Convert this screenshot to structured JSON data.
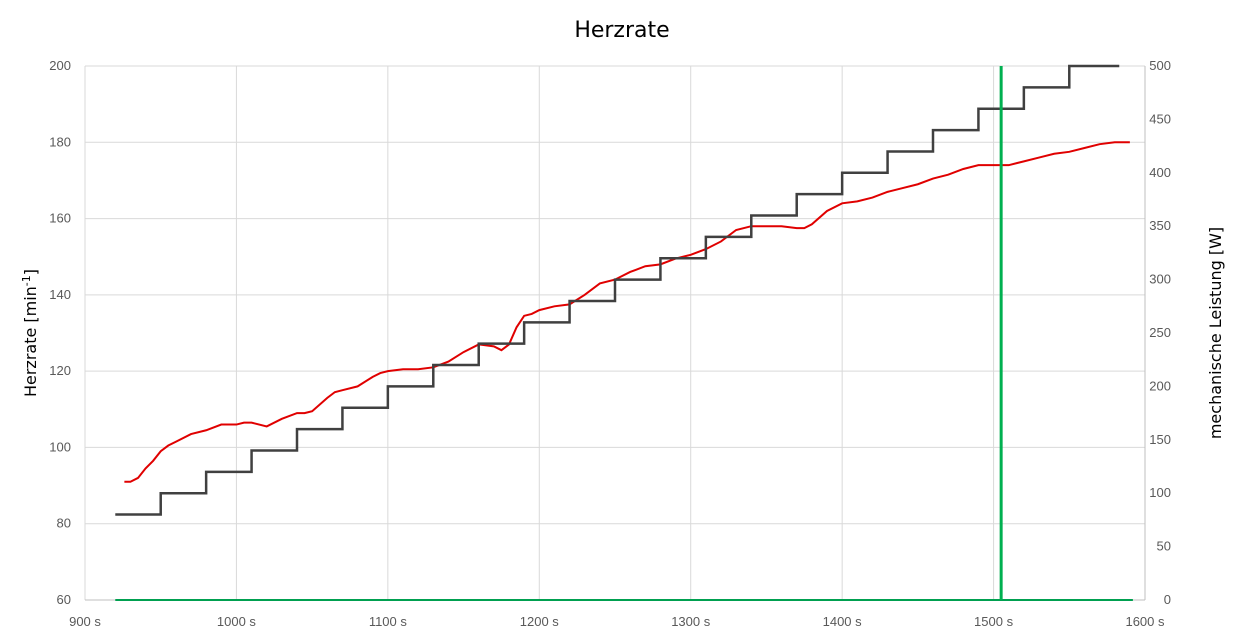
{
  "chart_data": {
    "type": "line",
    "title": "Herzrate",
    "ylabel": "Herzrate [min",
    "ylabel_sup": "-1",
    "ylabel_close": "]",
    "y2label": "mechanische Leistung [W]",
    "xlabel": "",
    "xlim": [
      900,
      1600
    ],
    "ylim": [
      60,
      200
    ],
    "y2lim": [
      0,
      500
    ],
    "grid": true,
    "legend": "none",
    "x_ticks": [
      "900 s",
      "1000 s",
      "1100 s",
      "1200 s",
      "1300 s",
      "1400 s",
      "1500 s",
      "1600 s"
    ],
    "y_ticks": [
      "60",
      "80",
      "100",
      "120",
      "140",
      "160",
      "180",
      "200"
    ],
    "y2_ticks": [
      "0",
      "50",
      "100",
      "150",
      "200",
      "250",
      "300",
      "350",
      "400",
      "450",
      "500"
    ],
    "series": [
      {
        "color": "#e00000",
        "axis": "left",
        "kind": "line",
        "x": [
          926,
          930,
          935,
          940,
          945,
          950,
          955,
          960,
          970,
          980,
          990,
          1000,
          1005,
          1010,
          1020,
          1030,
          1040,
          1045,
          1050,
          1060,
          1065,
          1070,
          1080,
          1090,
          1095,
          1100,
          1110,
          1120,
          1130,
          1140,
          1150,
          1160,
          1170,
          1175,
          1180,
          1185,
          1190,
          1195,
          1200,
          1210,
          1220,
          1230,
          1240,
          1250,
          1260,
          1270,
          1280,
          1290,
          1300,
          1310,
          1320,
          1330,
          1340,
          1350,
          1360,
          1370,
          1375,
          1380,
          1390,
          1400,
          1410,
          1420,
          1430,
          1440,
          1450,
          1460,
          1470,
          1480,
          1490,
          1500,
          1510,
          1520,
          1530,
          1540,
          1550,
          1560,
          1570,
          1580,
          1590
        ],
        "y": [
          91,
          91,
          92,
          94.5,
          96.5,
          99,
          100.5,
          101.5,
          103.5,
          104.5,
          106,
          106,
          106.5,
          106.5,
          105.5,
          107.5,
          109,
          109,
          109.5,
          113,
          114.5,
          115,
          116,
          118.5,
          119.5,
          120,
          120.5,
          120.5,
          121,
          122.5,
          125,
          127,
          126.5,
          125.5,
          127,
          131.5,
          134.5,
          135,
          136,
          137,
          137.5,
          140,
          143,
          144,
          146,
          147.5,
          148,
          149.5,
          150.5,
          152,
          154,
          157,
          158,
          158,
          158,
          157.5,
          157.5,
          158.5,
          162,
          164,
          164.5,
          165.5,
          167,
          168,
          169,
          170.5,
          171.5,
          173,
          174,
          174,
          174,
          175,
          176,
          177,
          177.5,
          178.5,
          179.5,
          180,
          180
        ]
      },
      {
        "color": "#404040",
        "axis": "right",
        "kind": "step",
        "x": [
          920,
          950,
          980,
          1010,
          1040,
          1070,
          1100,
          1130,
          1160,
          1190,
          1220,
          1250,
          1280,
          1310,
          1340,
          1370,
          1400,
          1430,
          1460,
          1490,
          1520,
          1550,
          1583
        ],
        "y": [
          80,
          100,
          120,
          140,
          160,
          180,
          200,
          220,
          240,
          260,
          280,
          300,
          320,
          340,
          360,
          380,
          400,
          420,
          440,
          460,
          480,
          500,
          500
        ]
      },
      {
        "color": "#00a050",
        "axis": "left",
        "kind": "hline",
        "x": [
          920,
          1592
        ],
        "y": [
          60,
          60
        ]
      },
      {
        "color": "#00b050",
        "axis": "left",
        "kind": "vline",
        "x": [
          1505,
          1505
        ],
        "y": [
          60,
          200
        ]
      }
    ]
  }
}
